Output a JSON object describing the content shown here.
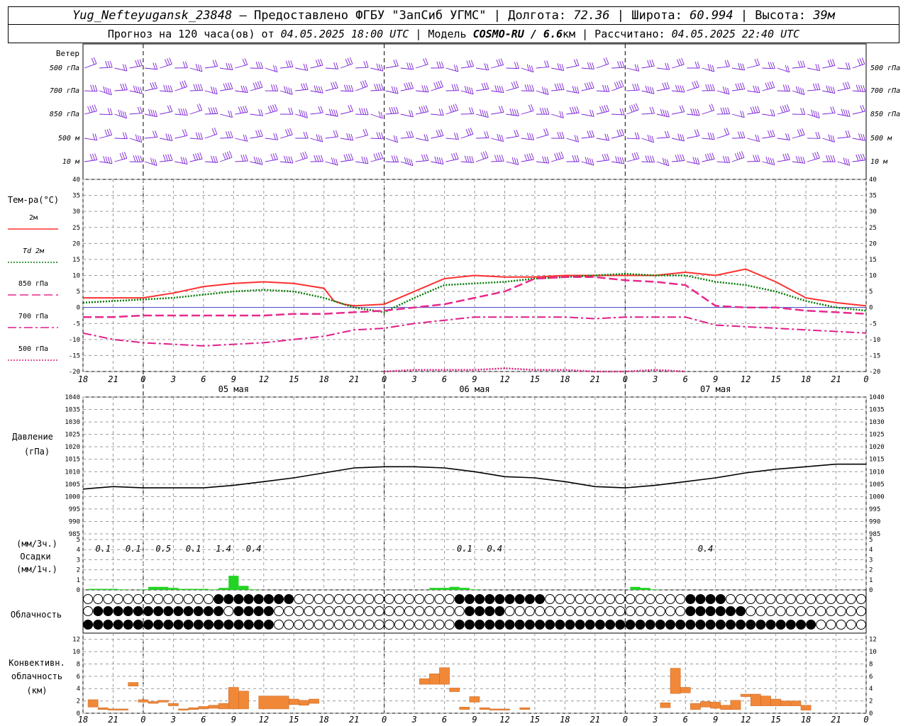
{
  "header": {
    "station": "Yug_Nefteyugansk_23848",
    "provider": "– Предоставлено ФГБУ \"ЗапСиб УГМС\"",
    "lon_label": "| Долгота:",
    "lon": "72.36",
    "lat_label": "| Широта:",
    "lat": "60.994",
    "alt_label": "| Высота:",
    "alt": "39м",
    "forecast_label": "Прогноз на 120 часа(ов) от",
    "forecast_start": "04.05.2025 18:00 UTC",
    "model_label": "| Модель",
    "model": "COSMO-RU / 6.6",
    "model_unit": "км",
    "computed_label": "| Рассчитано:",
    "computed": "04.05.2025 22:40 UTC"
  },
  "panels": {
    "wind": {
      "title": "Ветер",
      "levels": [
        "500 гПа",
        "700 гПа",
        "850 гПа",
        "500 м",
        "10 м"
      ]
    },
    "temp": {
      "title": "Тем-ра(°C)",
      "legend": [
        "2м",
        "Td 2м",
        "850 гПа",
        "700 гПа",
        "500 гПа"
      ]
    },
    "pressure": {
      "title_line1": "Давление",
      "title_line2": "(гПа)"
    },
    "precip": {
      "title_line1": "(мм/3ч.)",
      "title_line2": "Осадки",
      "title_line3": "(мм/1ч.)"
    },
    "cloud": {
      "title": "Облачность"
    },
    "conv": {
      "title_line1": "Конвективн.",
      "title_line2": "облачность",
      "title_line3": "(км)"
    }
  },
  "colors": {
    "t2m": "#ff3030",
    "td2m": "#007a00",
    "t850": "#e8288c",
    "t700": "#e01e8a",
    "t500": "#d81f7c",
    "wind": "#7a1fd6",
    "pressure": "#000000",
    "precip": "#22d422",
    "conv": "#f08838",
    "zero_line": "#4040c0"
  },
  "chart_data": [
    {
      "type": "line",
      "panel": "temperature",
      "x_ticks": [
        "18",
        "21",
        "0",
        "3",
        "6",
        "9",
        "12",
        "15",
        "18",
        "21",
        "0",
        "3",
        "6",
        "9",
        "12",
        "15",
        "18",
        "21",
        "0",
        "3",
        "6",
        "9",
        "12",
        "15",
        "18",
        "21",
        "0"
      ],
      "day_labels": [
        {
          "label": "05 мая",
          "hour": 15
        },
        {
          "label": "06 мая",
          "hour": 39
        },
        {
          "label": "07 мая",
          "hour": 63
        }
      ],
      "x_range_hours": [
        0,
        78
      ],
      "y_ticks": [
        "40",
        "35",
        "30",
        "25",
        "20",
        "15",
        "10",
        "5",
        "0",
        "-5",
        "-10",
        "-15",
        "-20"
      ],
      "ylim": [
        -20,
        40
      ],
      "series": [
        {
          "name": "2м",
          "style": "solid",
          "x": [
            0,
            3,
            6,
            9,
            12,
            15,
            18,
            21,
            24,
            25,
            26,
            27,
            30,
            33,
            36,
            39,
            42,
            45,
            48,
            51,
            54,
            57,
            60,
            63,
            66,
            69,
            72,
            75,
            78
          ],
          "y": [
            3,
            3,
            3,
            4.5,
            6.5,
            7.5,
            8,
            7.5,
            6,
            2,
            1,
            0.5,
            1,
            5,
            9,
            10,
            9.5,
            9.5,
            10,
            10,
            10,
            10,
            11,
            10,
            12,
            8,
            3,
            1.5,
            0.5
          ]
        },
        {
          "name": "Td 2м",
          "style": "dotted",
          "x": [
            0,
            3,
            6,
            9,
            12,
            15,
            18,
            21,
            24,
            27,
            30,
            33,
            36,
            39,
            42,
            45,
            48,
            51,
            54,
            57,
            60,
            63,
            66,
            69,
            72,
            75,
            78
          ],
          "y": [
            1.5,
            2,
            2.5,
            3,
            4,
            5,
            5.5,
            5,
            3,
            0,
            -1.5,
            3,
            7,
            7.5,
            8,
            9,
            9.5,
            10,
            10.5,
            10,
            10,
            8,
            7,
            5,
            2,
            0,
            -1
          ]
        },
        {
          "name": "850 гПа",
          "style": "dashed",
          "x": [
            0,
            3,
            6,
            9,
            12,
            15,
            18,
            21,
            24,
            27,
            30,
            33,
            36,
            39,
            42,
            45,
            48,
            51,
            54,
            57,
            60,
            63,
            66,
            69,
            72,
            75,
            78
          ],
          "y": [
            -3,
            -3,
            -2.5,
            -2.5,
            -2.5,
            -2.5,
            -2.5,
            -2,
            -2,
            -1.5,
            -1,
            0,
            1,
            3,
            5,
            9,
            9.5,
            9.5,
            8.5,
            8,
            7,
            0.5,
            0,
            0,
            -1,
            -1.5,
            -2
          ]
        },
        {
          "name": "700 гПа",
          "style": "dashdot",
          "x": [
            0,
            3,
            6,
            9,
            12,
            15,
            18,
            21,
            24,
            27,
            30,
            33,
            36,
            39,
            42,
            45,
            48,
            51,
            54,
            57,
            60,
            63,
            66,
            69,
            72,
            75,
            78
          ],
          "y": [
            -8,
            -10,
            -11,
            -11.5,
            -12,
            -11.5,
            -11,
            -10,
            -9,
            -7,
            -6.5,
            -5,
            -4,
            -3,
            -3,
            -3,
            -3,
            -3.5,
            -3,
            -3,
            -3,
            -5.5,
            -6,
            -6.5,
            -7,
            -7.5,
            -8
          ]
        },
        {
          "name": "500 гПа",
          "style": "dotted",
          "x": [
            30,
            33,
            36,
            39,
            42,
            45,
            48,
            51,
            54,
            57,
            60
          ],
          "y": [
            -20,
            -19.5,
            -19.5,
            -19.5,
            -19,
            -19.5,
            -19.5,
            -20,
            -20,
            -19.5,
            -20
          ]
        }
      ]
    },
    {
      "type": "line",
      "panel": "pressure",
      "y_ticks": [
        "1040",
        "1035",
        "1030",
        "1025",
        "1020",
        "1015",
        "1010",
        "1005",
        "1000",
        "995",
        "990",
        "985"
      ],
      "ylim": [
        985,
        1040
      ],
      "series": [
        {
          "name": "",
          "x": [
            0,
            3,
            6,
            9,
            12,
            15,
            18,
            21,
            24,
            27,
            30,
            33,
            36,
            39,
            42,
            45,
            48,
            51,
            54,
            57,
            60,
            63,
            66,
            69,
            72,
            75,
            78
          ],
          "y": [
            1003,
            1004,
            1003.5,
            1003.5,
            1003.5,
            1004.5,
            1006,
            1007.5,
            1009.5,
            1011.5,
            1012,
            1012,
            1011.5,
            1010,
            1008,
            1007.5,
            1006,
            1004,
            1003.5,
            1004.5,
            1006,
            1007.5,
            1009.5,
            1011,
            1012,
            1013,
            1013
          ]
        }
      ]
    },
    {
      "type": "bar",
      "panel": "precipitation",
      "ylim": [
        0,
        5
      ],
      "y_ticks": [
        "5",
        "4",
        "3",
        "2",
        "1",
        "0"
      ],
      "labels_3h": [
        {
          "hour": 2,
          "text": "0.1"
        },
        {
          "hour": 5,
          "text": "0.1"
        },
        {
          "hour": 8,
          "text": "0.5"
        },
        {
          "hour": 11,
          "text": "0.1"
        },
        {
          "hour": 14,
          "text": "1.4"
        },
        {
          "hour": 17,
          "text": "0.4"
        },
        {
          "hour": 38,
          "text": "0.1"
        },
        {
          "hour": 41,
          "text": "0.4"
        },
        {
          "hour": 62,
          "text": "0.4"
        }
      ],
      "x": [
        1,
        2,
        3,
        4,
        6,
        7,
        8,
        9,
        10,
        11,
        12,
        13,
        14,
        15,
        16,
        17,
        35,
        36,
        37,
        38,
        39,
        55,
        56,
        57
      ],
      "values": [
        0.1,
        0.1,
        0.1,
        0.05,
        0.05,
        0.3,
        0.3,
        0.2,
        0.1,
        0.1,
        0.1,
        0.05,
        0.2,
        1.4,
        0.4,
        0.05,
        0.2,
        0.2,
        0.3,
        0.2,
        0.05,
        0.3,
        0.2,
        0.05
      ]
    },
    {
      "type": "heatmap",
      "panel": "cloudiness",
      "rows": 3,
      "cols": 78,
      "row_fractions": [
        "000000000000011111111000000000000000011111111100000000000000111100000000000000000000",
        "011111111111110111100000000000000000001111000000000000000000111111000000000000000000",
        "111111111111111111100000000000000000011111111111111111111111111111111111100000000000"
      ]
    },
    {
      "type": "bar",
      "panel": "convective",
      "ylim": [
        0,
        13
      ],
      "y_ticks": [
        "12",
        "10",
        "8",
        "6",
        "4",
        "2",
        "0"
      ],
      "bars": [
        {
          "x0": 0.5,
          "x1": 1.5,
          "base": 1,
          "top": 2.2
        },
        {
          "x0": 1.5,
          "x1": 2.5,
          "base": 0.6,
          "top": 0.9
        },
        {
          "x0": 2.5,
          "x1": 4.5,
          "base": 0.5,
          "top": 0.7
        },
        {
          "x0": 4.5,
          "x1": 5.5,
          "base": 4.4,
          "top": 5
        },
        {
          "x0": 5.5,
          "x1": 6.5,
          "base": 1.8,
          "top": 2.2
        },
        {
          "x0": 6.5,
          "x1": 7.5,
          "base": 1.6,
          "top": 1.9
        },
        {
          "x0": 7.5,
          "x1": 8.5,
          "base": 1.8,
          "top": 2.1
        },
        {
          "x0": 8.5,
          "x1": 9.5,
          "base": 1.2,
          "top": 1.6
        },
        {
          "x0": 9.5,
          "x1": 10.5,
          "base": 0.5,
          "top": 0.7
        },
        {
          "x0": 10.5,
          "x1": 11.5,
          "base": 0.6,
          "top": 0.9
        },
        {
          "x0": 11.5,
          "x1": 12.5,
          "base": 0.7,
          "top": 1.1
        },
        {
          "x0": 12.5,
          "x1": 13.5,
          "base": 0.8,
          "top": 1.3
        },
        {
          "x0": 13.5,
          "x1": 14.5,
          "base": 0.7,
          "top": 1.6
        },
        {
          "x0": 14.5,
          "x1": 15.5,
          "base": 0.7,
          "top": 4.2
        },
        {
          "x0": 15.5,
          "x1": 16.5,
          "base": 0.7,
          "top": 3.6
        },
        {
          "x0": 17.5,
          "x1": 20.5,
          "base": 0.7,
          "top": 2.8
        },
        {
          "x0": 20.5,
          "x1": 21.5,
          "base": 1.4,
          "top": 2.3
        },
        {
          "x0": 21.5,
          "x1": 22.5,
          "base": 1.3,
          "top": 2.1
        },
        {
          "x0": 22.5,
          "x1": 23.5,
          "base": 1.6,
          "top": 2.3
        },
        {
          "x0": 33.5,
          "x1": 34.5,
          "base": 4.7,
          "top": 5.6
        },
        {
          "x0": 34.5,
          "x1": 35.5,
          "base": 4.7,
          "top": 6.4
        },
        {
          "x0": 35.5,
          "x1": 36.5,
          "base": 4.7,
          "top": 7.4
        },
        {
          "x0": 36.5,
          "x1": 37.5,
          "base": 3.5,
          "top": 4.1
        },
        {
          "x0": 37.5,
          "x1": 38.5,
          "base": 0.6,
          "top": 1
        },
        {
          "x0": 38.5,
          "x1": 39.5,
          "base": 1.8,
          "top": 2.7
        },
        {
          "x0": 39.5,
          "x1": 40.5,
          "base": 0.6,
          "top": 0.9
        },
        {
          "x0": 40.5,
          "x1": 41.5,
          "base": 0.5,
          "top": 0.7
        },
        {
          "x0": 41.5,
          "x1": 42.5,
          "base": 0.5,
          "top": 0.7
        },
        {
          "x0": 43.5,
          "x1": 44.5,
          "base": 0.6,
          "top": 0.9
        },
        {
          "x0": 57.5,
          "x1": 58.5,
          "base": 0.9,
          "top": 1.7
        },
        {
          "x0": 58.5,
          "x1": 59.5,
          "base": 3.2,
          "top": 7.3
        },
        {
          "x0": 59.5,
          "x1": 60.5,
          "base": 3.3,
          "top": 4.2
        },
        {
          "x0": 60.5,
          "x1": 61.5,
          "base": 0.6,
          "top": 1.6
        },
        {
          "x0": 61.5,
          "x1": 62.5,
          "base": 1,
          "top": 1.9
        },
        {
          "x0": 62.5,
          "x1": 63.5,
          "base": 0.8,
          "top": 1.8
        },
        {
          "x0": 63.5,
          "x1": 64.5,
          "base": 0.6,
          "top": 1.3
        },
        {
          "x0": 64.5,
          "x1": 65.5,
          "base": 0.6,
          "top": 2.1
        },
        {
          "x0": 65.5,
          "x1": 66.5,
          "base": 2.7,
          "top": 3.1
        },
        {
          "x0": 66.5,
          "x1": 67.5,
          "base": 1.2,
          "top": 3.1
        },
        {
          "x0": 67.5,
          "x1": 68.5,
          "base": 1.2,
          "top": 2.8
        },
        {
          "x0": 68.5,
          "x1": 69.5,
          "base": 1.2,
          "top": 2.3
        },
        {
          "x0": 69.5,
          "x1": 70.5,
          "base": 1.2,
          "top": 2.0
        },
        {
          "x0": 70.5,
          "x1": 71.5,
          "base": 1.2,
          "top": 2.0
        },
        {
          "x0": 71.5,
          "x1": 72.5,
          "base": 0.5,
          "top": 1.3
        }
      ]
    },
    {
      "type": "wind_barbs",
      "panel": "wind",
      "levels": [
        "500 гПа",
        "700 гПа",
        "850 гПа",
        "500 м",
        "10 м"
      ],
      "x_range_hours": [
        0,
        78
      ]
    }
  ]
}
